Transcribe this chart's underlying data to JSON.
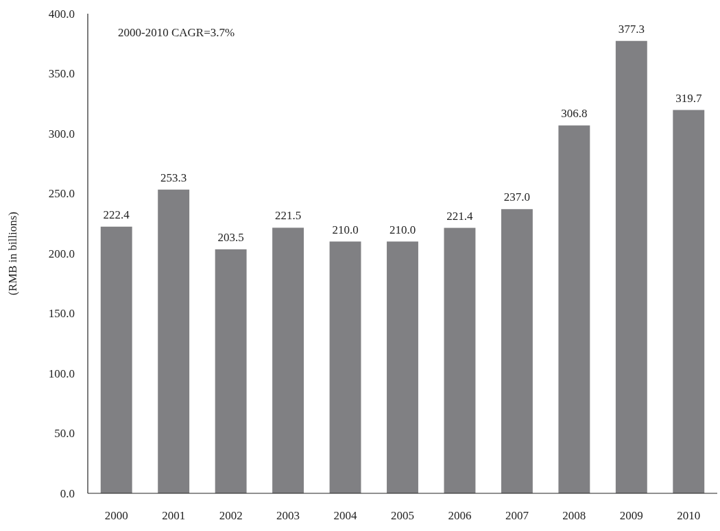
{
  "chart_data": {
    "type": "bar",
    "ylabel": "(RMB in billions)",
    "annotations": [
      "2000-2010 CAGR=3.7%"
    ],
    "categories": [
      "2000",
      "2001",
      "2002",
      "2003",
      "2004",
      "2005",
      "2006",
      "2007",
      "2008",
      "2009",
      "2010"
    ],
    "values": [
      222.4,
      253.3,
      203.5,
      221.5,
      210.0,
      210.0,
      221.4,
      237.0,
      306.8,
      377.3,
      319.7
    ],
    "value_labels": [
      "222.4",
      "253.3",
      "203.5",
      "221.5",
      "210.0",
      "210.0",
      "221.4",
      "237.0",
      "306.8",
      "377.3",
      "319.7"
    ],
    "color": "#808083",
    "ylim": [
      0,
      400
    ],
    "yticks": [
      {
        "value": 0,
        "label": "0.0"
      },
      {
        "value": 50,
        "label": "50.0"
      },
      {
        "value": 100,
        "label": "100.0"
      },
      {
        "value": 150,
        "label": "150.0"
      },
      {
        "value": 200,
        "label": "200.0"
      },
      {
        "value": 250,
        "label": "250.0"
      },
      {
        "value": 300,
        "label": "300.0"
      },
      {
        "value": 350,
        "label": "350.0"
      },
      {
        "value": 400,
        "label": "400.0"
      }
    ],
    "grid": false
  }
}
